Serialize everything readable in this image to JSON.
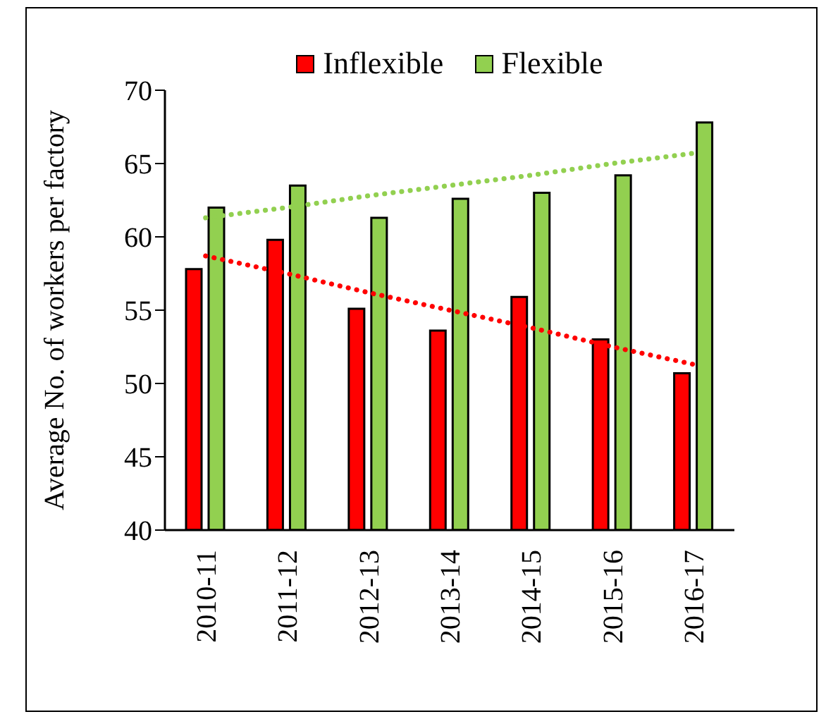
{
  "chart_data": {
    "type": "bar",
    "ylabel": "Average No. of workers per factory",
    "categories": [
      "2010-11",
      "2011-12",
      "2012-13",
      "2013-14",
      "2014-15",
      "2015-16",
      "2016-17"
    ],
    "series": [
      {
        "name": "Inflexible",
        "color": "#ff0000",
        "values": [
          57.8,
          59.8,
          55.1,
          53.6,
          55.9,
          53.0,
          50.7
        ]
      },
      {
        "name": "Flexible",
        "color": "#92d050",
        "values": [
          62.0,
          63.5,
          61.3,
          62.6,
          63.0,
          64.2,
          67.8
        ]
      },
      {
        "type": "line",
        "color": "#ff0000",
        "values": [
          58.7,
          57.5,
          56.2,
          55.0,
          53.8,
          52.5,
          51.3
        ],
        "line_style": "dotted"
      },
      {
        "type": "line",
        "color": "#92d050",
        "values": [
          61.3,
          62.0,
          62.8,
          63.5,
          64.2,
          65.0,
          65.7
        ],
        "line_style": "dotted"
      }
    ],
    "ylim": [
      40,
      70
    ],
    "yticks": [
      40,
      45,
      50,
      55,
      60,
      65,
      70
    ],
    "legend": "top",
    "marker": "none"
  }
}
